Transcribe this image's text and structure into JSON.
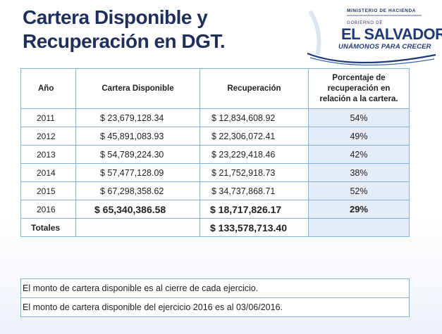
{
  "title": {
    "line1": "Cartera Disponible y",
    "line2": "Recuperación en DGT."
  },
  "logo": {
    "ministry": "MINISTERIO DE HACIENDA",
    "gobierno": "GOBIERNO DE",
    "country": "EL SALVADOR",
    "slogan": "UNÁMONOS PARA CRECER"
  },
  "table": {
    "headers": {
      "year": "Año",
      "cartera": "Cartera Disponible",
      "recuperacion": "Recuperación",
      "porcentaje": "Porcentaje de recuperación en relación a la cartera."
    },
    "rows": [
      {
        "year": "2011",
        "cartera": "$ 23,679,128.34",
        "recuperacion": "$ 12,834,608.92",
        "porcentaje": "54%"
      },
      {
        "year": "2012",
        "cartera": "$ 45,891,083.93",
        "recuperacion": "$ 22,306,072.41",
        "porcentaje": "49%"
      },
      {
        "year": "2013",
        "cartera": "$ 54,789,224.30",
        "recuperacion": "$ 23,229,418.46",
        "porcentaje": "42%"
      },
      {
        "year": "2014",
        "cartera": "$ 57,477,128.09",
        "recuperacion": "$ 21,752,918.73",
        "porcentaje": "38%"
      },
      {
        "year": "2015",
        "cartera": "$ 67,298,358.62",
        "recuperacion": "$ 34,737,868.71",
        "porcentaje": "52%"
      },
      {
        "year": "2016",
        "cartera": "$ 65,340,386.58",
        "recuperacion": "$ 18,717,826.17",
        "porcentaje": "29%"
      }
    ],
    "totals": {
      "label": "Totales",
      "recuperacion": "$ 133,578,713.40"
    }
  },
  "notes": [
    "El monto de cartera disponible es al cierre de cada ejercicio.",
    "El monto de cartera disponible del ejercicio 2016 es al 03/06/2016."
  ],
  "colors": {
    "title": "#1f2f5c",
    "table_border": "#7fb3dd",
    "pct_fill": "#e6ecf7",
    "logo_blue": "#1f3a7a"
  }
}
